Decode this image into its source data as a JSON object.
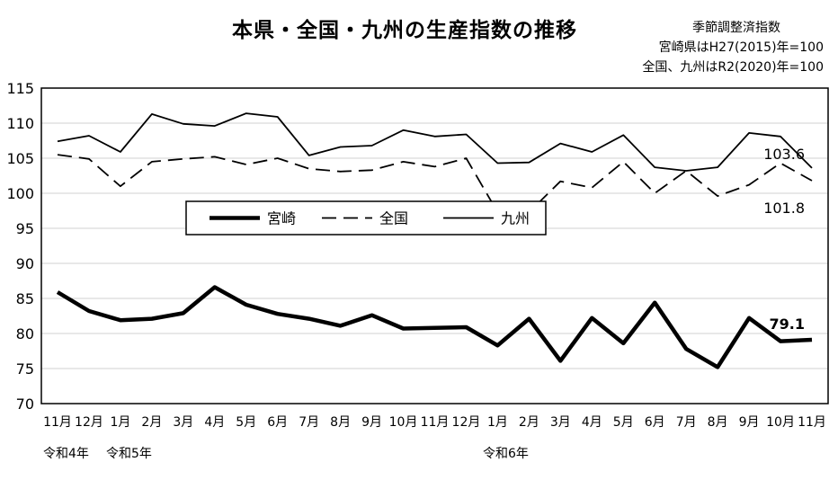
{
  "header": {
    "title": "本県・全国・九州の生産指数の推移",
    "note_line1": "季節調整済指数",
    "note_line2": "宮崎県はH27(2015)年=100",
    "note_line3": "全国、九州はR2(2020)年=100"
  },
  "era_labels": [
    "令和4年",
    "令和5年",
    "令和6年"
  ],
  "chart_data": {
    "type": "line",
    "categories": [
      "11月",
      "12月",
      "1月",
      "2月",
      "3月",
      "4月",
      "5月",
      "6月",
      "7月",
      "8月",
      "9月",
      "10月",
      "11月",
      "12月",
      "1月",
      "2月",
      "3月",
      "4月",
      "5月",
      "6月",
      "7月",
      "8月",
      "9月",
      "10月",
      "11月"
    ],
    "ylim": [
      70,
      115
    ],
    "yticks": [
      70,
      75,
      80,
      85,
      90,
      95,
      100,
      105,
      110,
      115
    ],
    "grid": true,
    "legend": {
      "position": "center-left",
      "entries": [
        "宮崎",
        "全国",
        "九州"
      ]
    },
    "series": [
      {
        "name": "宮崎",
        "style": "thick-solid",
        "color": "#000000",
        "values": [
          85.9,
          83.2,
          81.9,
          82.1,
          82.9,
          86.6,
          84.1,
          82.8,
          82.1,
          81.1,
          82.6,
          80.7,
          80.8,
          80.9,
          78.3,
          82.1,
          76.1,
          82.2,
          78.6,
          84.4,
          77.8,
          75.2,
          82.2,
          78.9,
          79.1
        ],
        "end_label": "79.1"
      },
      {
        "name": "全国",
        "style": "dashed",
        "color": "#000000",
        "values": [
          105.5,
          104.9,
          101.0,
          104.5,
          104.9,
          105.2,
          104.1,
          105.0,
          103.5,
          103.1,
          103.3,
          104.5,
          103.8,
          105.0,
          97.3,
          97.3,
          101.7,
          100.8,
          104.5,
          100.0,
          103.2,
          99.6,
          101.2,
          104.3,
          101.8
        ],
        "end_label": "101.8"
      },
      {
        "name": "九州",
        "style": "solid",
        "color": "#000000",
        "values": [
          107.4,
          108.2,
          105.9,
          111.3,
          109.9,
          109.6,
          111.4,
          110.9,
          105.4,
          106.6,
          106.8,
          109.0,
          108.1,
          108.4,
          104.3,
          104.4,
          107.1,
          105.9,
          108.3,
          103.7,
          103.2,
          103.7,
          108.6,
          108.1,
          103.6
        ],
        "end_label": "103.6"
      }
    ]
  }
}
